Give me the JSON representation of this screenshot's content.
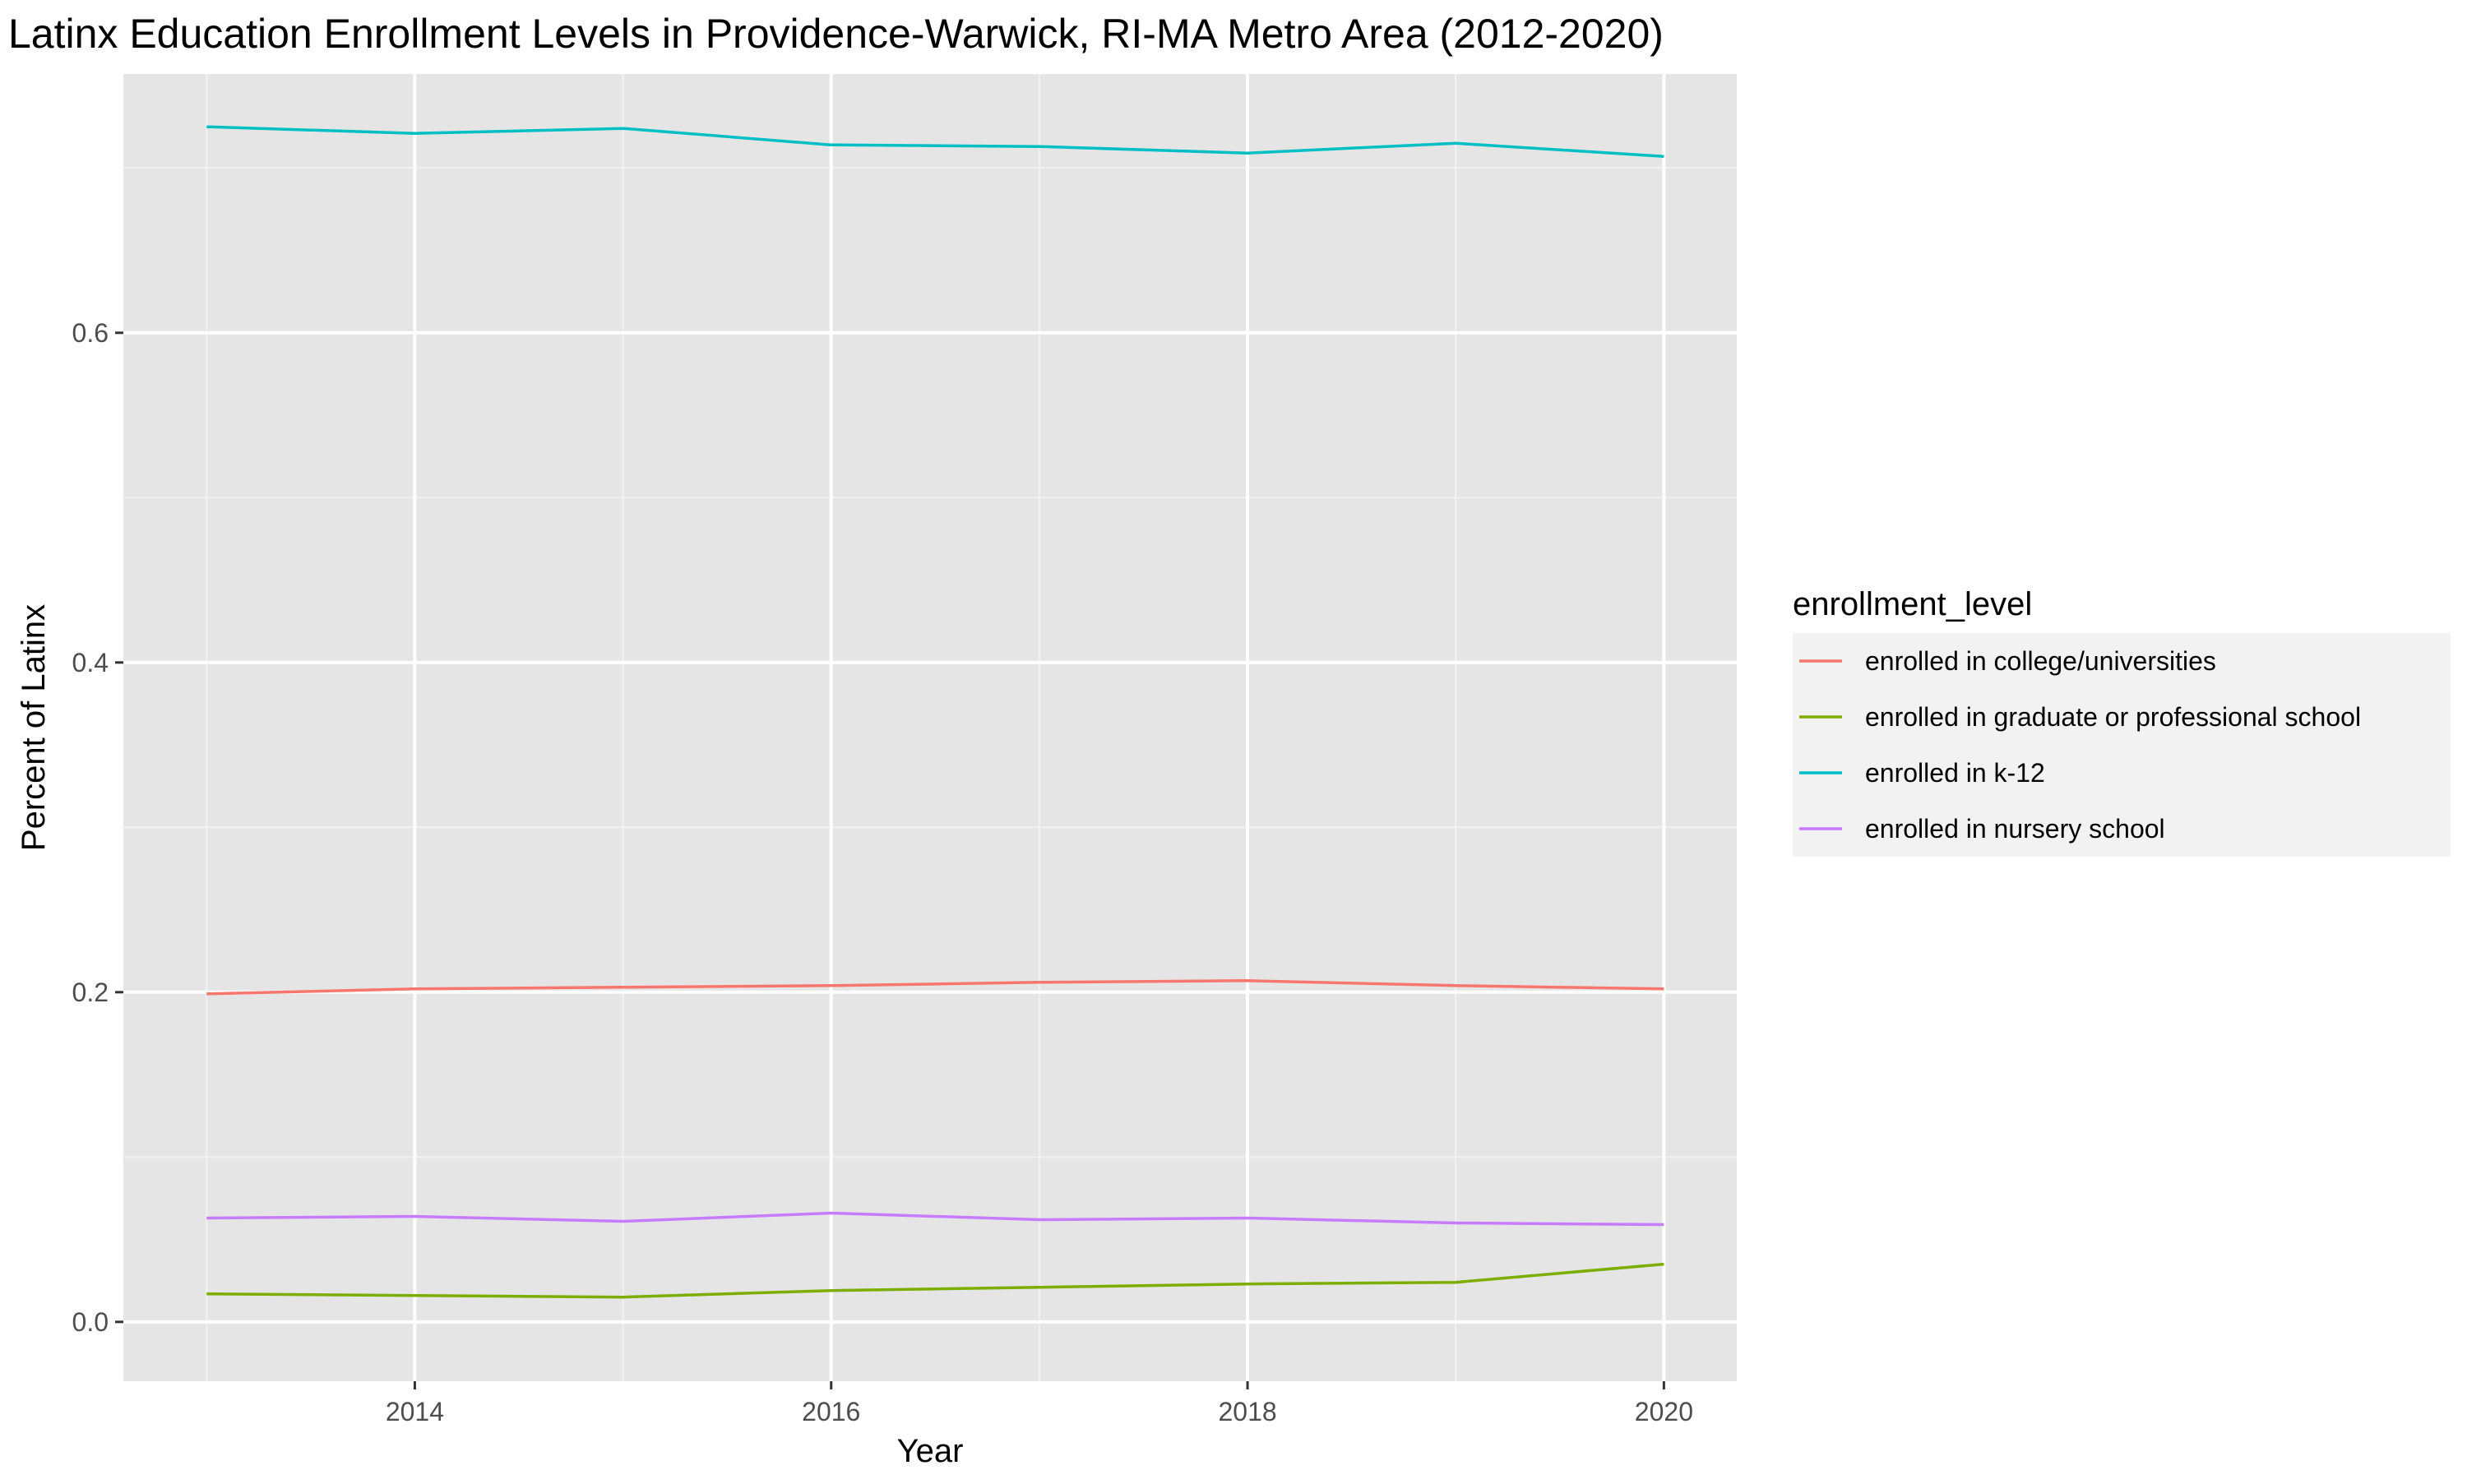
{
  "chart_data": {
    "type": "line",
    "title": "Latinx Education Enrollment Levels in Providence-Warwick, RI-MA Metro Area (2012-2020)",
    "xlabel": "Year",
    "ylabel": "Percent of Latinx",
    "x": [
      2013,
      2014,
      2015,
      2016,
      2017,
      2018,
      2019,
      2020
    ],
    "xlim": [
      2012.6,
      2020.35
    ],
    "ylim": [
      -0.036,
      0.757
    ],
    "x_ticks": [
      2014,
      2016,
      2018,
      2020
    ],
    "x_tick_labels": [
      "2014",
      "2016",
      "2018",
      "2020"
    ],
    "y_ticks": [
      0.0,
      0.2,
      0.4,
      0.6
    ],
    "y_tick_labels": [
      "0.0",
      "0.2",
      "0.4",
      "0.6"
    ],
    "grid": true,
    "panel_background": "#e5e5e5",
    "legend": {
      "title": "enrollment_level",
      "position": "right"
    },
    "series": [
      {
        "name": "enrolled in college/universities",
        "color": "#f8766d",
        "values": [
          0.199,
          0.202,
          0.203,
          0.204,
          0.206,
          0.207,
          0.204,
          0.202
        ]
      },
      {
        "name": "enrolled in graduate or professional school",
        "color": "#7cae00",
        "values": [
          0.017,
          0.016,
          0.015,
          0.019,
          0.021,
          0.023,
          0.024,
          0.035
        ]
      },
      {
        "name": "enrolled in k-12",
        "color": "#00bfc4",
        "values": [
          0.725,
          0.721,
          0.724,
          0.714,
          0.713,
          0.709,
          0.715,
          0.707
        ]
      },
      {
        "name": "enrolled in nursery school",
        "color": "#c77cff",
        "values": [
          0.063,
          0.064,
          0.061,
          0.066,
          0.062,
          0.063,
          0.06,
          0.059
        ]
      }
    ]
  }
}
